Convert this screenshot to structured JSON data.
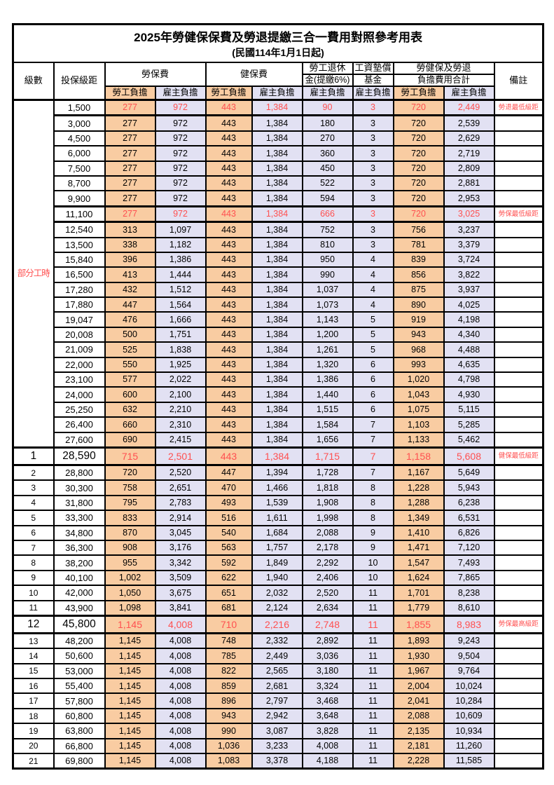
{
  "title": "2025年勞健保保費及勞退提繳三合一費用對照參考用表",
  "subtitle": "(民國114年1月1日起)",
  "colors": {
    "employee_bg": "#F9CCA2",
    "employer_bg": "#E2E1F3",
    "highlight_text": "#FF5050",
    "border": "#000000"
  },
  "header": {
    "level": "級數",
    "bracket": "投保級距",
    "labor_ins": "勞保費",
    "health_ins": "健保費",
    "pension_line1": "勞工退休",
    "pension_line2": "金(提繳6%)",
    "wage_fund_line1": "工資墊償",
    "wage_fund_line2": "基金",
    "total_line1": "勞健保及勞退",
    "total_line2": "負擔費用合計",
    "remark": "備註",
    "employee_share": "勞工負擔",
    "employer_share": "雇主負擔"
  },
  "part_time": {
    "label": "部分工時",
    "rowspan": 23
  },
  "rows": [
    {
      "level": "",
      "bracket": "1,500",
      "values": [
        "277",
        "972",
        "443",
        "1,384",
        "90",
        "3",
        "720",
        "2,449"
      ],
      "remark": "勞退最低級距",
      "highlight": true,
      "big": false
    },
    {
      "level": "",
      "bracket": "3,000",
      "values": [
        "277",
        "972",
        "443",
        "1,384",
        "180",
        "3",
        "720",
        "2,539"
      ],
      "remark": "",
      "highlight": false,
      "big": false
    },
    {
      "level": "",
      "bracket": "4,500",
      "values": [
        "277",
        "972",
        "443",
        "1,384",
        "270",
        "3",
        "720",
        "2,629"
      ],
      "remark": "",
      "highlight": false,
      "big": false
    },
    {
      "level": "",
      "bracket": "6,000",
      "values": [
        "277",
        "972",
        "443",
        "1,384",
        "360",
        "3",
        "720",
        "2,719"
      ],
      "remark": "",
      "highlight": false,
      "big": false
    },
    {
      "level": "",
      "bracket": "7,500",
      "values": [
        "277",
        "972",
        "443",
        "1,384",
        "450",
        "3",
        "720",
        "2,809"
      ],
      "remark": "",
      "highlight": false,
      "big": false
    },
    {
      "level": "",
      "bracket": "8,700",
      "values": [
        "277",
        "972",
        "443",
        "1,384",
        "522",
        "3",
        "720",
        "2,881"
      ],
      "remark": "",
      "highlight": false,
      "big": false
    },
    {
      "level": "",
      "bracket": "9,900",
      "values": [
        "277",
        "972",
        "443",
        "1,384",
        "594",
        "3",
        "720",
        "2,953"
      ],
      "remark": "",
      "highlight": false,
      "big": false
    },
    {
      "level": "",
      "bracket": "11,100",
      "values": [
        "277",
        "972",
        "443",
        "1,384",
        "666",
        "3",
        "720",
        "3,025"
      ],
      "remark": "勞保最低級距",
      "highlight": true,
      "big": false
    },
    {
      "level": "",
      "bracket": "12,540",
      "values": [
        "313",
        "1,097",
        "443",
        "1,384",
        "752",
        "3",
        "756",
        "3,237"
      ],
      "remark": "",
      "highlight": false,
      "big": false
    },
    {
      "level": "",
      "bracket": "13,500",
      "values": [
        "338",
        "1,182",
        "443",
        "1,384",
        "810",
        "3",
        "781",
        "3,379"
      ],
      "remark": "",
      "highlight": false,
      "big": false
    },
    {
      "level": "",
      "bracket": "15,840",
      "values": [
        "396",
        "1,386",
        "443",
        "1,384",
        "950",
        "4",
        "839",
        "3,724"
      ],
      "remark": "",
      "highlight": false,
      "big": false
    },
    {
      "level": "",
      "bracket": "16,500",
      "values": [
        "413",
        "1,444",
        "443",
        "1,384",
        "990",
        "4",
        "856",
        "3,822"
      ],
      "remark": "",
      "highlight": false,
      "big": false
    },
    {
      "level": "",
      "bracket": "17,280",
      "values": [
        "432",
        "1,512",
        "443",
        "1,384",
        "1,037",
        "4",
        "875",
        "3,937"
      ],
      "remark": "",
      "highlight": false,
      "big": false
    },
    {
      "level": "",
      "bracket": "17,880",
      "values": [
        "447",
        "1,564",
        "443",
        "1,384",
        "1,073",
        "4",
        "890",
        "4,025"
      ],
      "remark": "",
      "highlight": false,
      "big": false
    },
    {
      "level": "",
      "bracket": "19,047",
      "values": [
        "476",
        "1,666",
        "443",
        "1,384",
        "1,143",
        "5",
        "919",
        "4,198"
      ],
      "remark": "",
      "highlight": false,
      "big": false
    },
    {
      "level": "",
      "bracket": "20,008",
      "values": [
        "500",
        "1,751",
        "443",
        "1,384",
        "1,200",
        "5",
        "943",
        "4,340"
      ],
      "remark": "",
      "highlight": false,
      "big": false
    },
    {
      "level": "",
      "bracket": "21,009",
      "values": [
        "525",
        "1,838",
        "443",
        "1,384",
        "1,261",
        "5",
        "968",
        "4,488"
      ],
      "remark": "",
      "highlight": false,
      "big": false
    },
    {
      "level": "",
      "bracket": "22,000",
      "values": [
        "550",
        "1,925",
        "443",
        "1,384",
        "1,320",
        "6",
        "993",
        "4,635"
      ],
      "remark": "",
      "highlight": false,
      "big": false
    },
    {
      "level": "",
      "bracket": "23,100",
      "values": [
        "577",
        "2,022",
        "443",
        "1,384",
        "1,386",
        "6",
        "1,020",
        "4,798"
      ],
      "remark": "",
      "highlight": false,
      "big": false
    },
    {
      "level": "",
      "bracket": "24,000",
      "values": [
        "600",
        "2,100",
        "443",
        "1,384",
        "1,440",
        "6",
        "1,043",
        "4,930"
      ],
      "remark": "",
      "highlight": false,
      "big": false
    },
    {
      "level": "",
      "bracket": "25,250",
      "values": [
        "632",
        "2,210",
        "443",
        "1,384",
        "1,515",
        "6",
        "1,075",
        "5,115"
      ],
      "remark": "",
      "highlight": false,
      "big": false
    },
    {
      "level": "",
      "bracket": "26,400",
      "values": [
        "660",
        "2,310",
        "443",
        "1,384",
        "1,584",
        "7",
        "1,103",
        "5,285"
      ],
      "remark": "",
      "highlight": false,
      "big": false
    },
    {
      "level": "",
      "bracket": "27,600",
      "values": [
        "690",
        "2,415",
        "443",
        "1,384",
        "1,656",
        "7",
        "1,133",
        "5,462"
      ],
      "remark": "",
      "highlight": false,
      "big": false
    },
    {
      "level": "1",
      "bracket": "28,590",
      "values": [
        "715",
        "2,501",
        "443",
        "1,384",
        "1,715",
        "7",
        "1,158",
        "5,608"
      ],
      "remark": "健保最低級距",
      "highlight": true,
      "big": true
    },
    {
      "level": "2",
      "bracket": "28,800",
      "values": [
        "720",
        "2,520",
        "447",
        "1,394",
        "1,728",
        "7",
        "1,167",
        "5,649"
      ],
      "remark": "",
      "highlight": false,
      "big": false
    },
    {
      "level": "3",
      "bracket": "30,300",
      "values": [
        "758",
        "2,651",
        "470",
        "1,466",
        "1,818",
        "8",
        "1,228",
        "5,943"
      ],
      "remark": "",
      "highlight": false,
      "big": false
    },
    {
      "level": "4",
      "bracket": "31,800",
      "values": [
        "795",
        "2,783",
        "493",
        "1,539",
        "1,908",
        "8",
        "1,288",
        "6,238"
      ],
      "remark": "",
      "highlight": false,
      "big": false
    },
    {
      "level": "5",
      "bracket": "33,300",
      "values": [
        "833",
        "2,914",
        "516",
        "1,611",
        "1,998",
        "8",
        "1,349",
        "6,531"
      ],
      "remark": "",
      "highlight": false,
      "big": false
    },
    {
      "level": "6",
      "bracket": "34,800",
      "values": [
        "870",
        "3,045",
        "540",
        "1,684",
        "2,088",
        "9",
        "1,410",
        "6,826"
      ],
      "remark": "",
      "highlight": false,
      "big": false
    },
    {
      "level": "7",
      "bracket": "36,300",
      "values": [
        "908",
        "3,176",
        "563",
        "1,757",
        "2,178",
        "9",
        "1,471",
        "7,120"
      ],
      "remark": "",
      "highlight": false,
      "big": false
    },
    {
      "level": "8",
      "bracket": "38,200",
      "values": [
        "955",
        "3,342",
        "592",
        "1,849",
        "2,292",
        "10",
        "1,547",
        "7,493"
      ],
      "remark": "",
      "highlight": false,
      "big": false
    },
    {
      "level": "9",
      "bracket": "40,100",
      "values": [
        "1,002",
        "3,509",
        "622",
        "1,940",
        "2,406",
        "10",
        "1,624",
        "7,865"
      ],
      "remark": "",
      "highlight": false,
      "big": false
    },
    {
      "level": "10",
      "bracket": "42,000",
      "values": [
        "1,050",
        "3,675",
        "651",
        "2,032",
        "2,520",
        "11",
        "1,701",
        "8,238"
      ],
      "remark": "",
      "highlight": false,
      "big": false
    },
    {
      "level": "11",
      "bracket": "43,900",
      "values": [
        "1,098",
        "3,841",
        "681",
        "2,124",
        "2,634",
        "11",
        "1,779",
        "8,610"
      ],
      "remark": "",
      "highlight": false,
      "big": false
    },
    {
      "level": "12",
      "bracket": "45,800",
      "values": [
        "1,145",
        "4,008",
        "710",
        "2,216",
        "2,748",
        "11",
        "1,855",
        "8,983"
      ],
      "remark": "勞保最高級距",
      "highlight": true,
      "big": true
    },
    {
      "level": "13",
      "bracket": "48,200",
      "values": [
        "1,145",
        "4,008",
        "748",
        "2,332",
        "2,892",
        "11",
        "1,893",
        "9,243"
      ],
      "remark": "",
      "highlight": false,
      "big": false
    },
    {
      "level": "14",
      "bracket": "50,600",
      "values": [
        "1,145",
        "4,008",
        "785",
        "2,449",
        "3,036",
        "11",
        "1,930",
        "9,504"
      ],
      "remark": "",
      "highlight": false,
      "big": false
    },
    {
      "level": "15",
      "bracket": "53,000",
      "values": [
        "1,145",
        "4,008",
        "822",
        "2,565",
        "3,180",
        "11",
        "1,967",
        "9,764"
      ],
      "remark": "",
      "highlight": false,
      "big": false
    },
    {
      "level": "16",
      "bracket": "55,400",
      "values": [
        "1,145",
        "4,008",
        "859",
        "2,681",
        "3,324",
        "11",
        "2,004",
        "10,024"
      ],
      "remark": "",
      "highlight": false,
      "big": false
    },
    {
      "level": "17",
      "bracket": "57,800",
      "values": [
        "1,145",
        "4,008",
        "896",
        "2,797",
        "3,468",
        "11",
        "2,041",
        "10,284"
      ],
      "remark": "",
      "highlight": false,
      "big": false
    },
    {
      "level": "18",
      "bracket": "60,800",
      "values": [
        "1,145",
        "4,008",
        "943",
        "2,942",
        "3,648",
        "11",
        "2,088",
        "10,609"
      ],
      "remark": "",
      "highlight": false,
      "big": false
    },
    {
      "level": "19",
      "bracket": "63,800",
      "values": [
        "1,145",
        "4,008",
        "990",
        "3,087",
        "3,828",
        "11",
        "2,135",
        "10,934"
      ],
      "remark": "",
      "highlight": false,
      "big": false
    },
    {
      "level": "20",
      "bracket": "66,800",
      "values": [
        "1,145",
        "4,008",
        "1,036",
        "3,233",
        "4,008",
        "11",
        "2,181",
        "11,260"
      ],
      "remark": "",
      "highlight": false,
      "big": false
    },
    {
      "level": "21",
      "bracket": "69,800",
      "values": [
        "1,145",
        "4,008",
        "1,083",
        "3,378",
        "4,188",
        "11",
        "2,228",
        "11,585"
      ],
      "remark": "",
      "highlight": false,
      "big": false
    }
  ]
}
